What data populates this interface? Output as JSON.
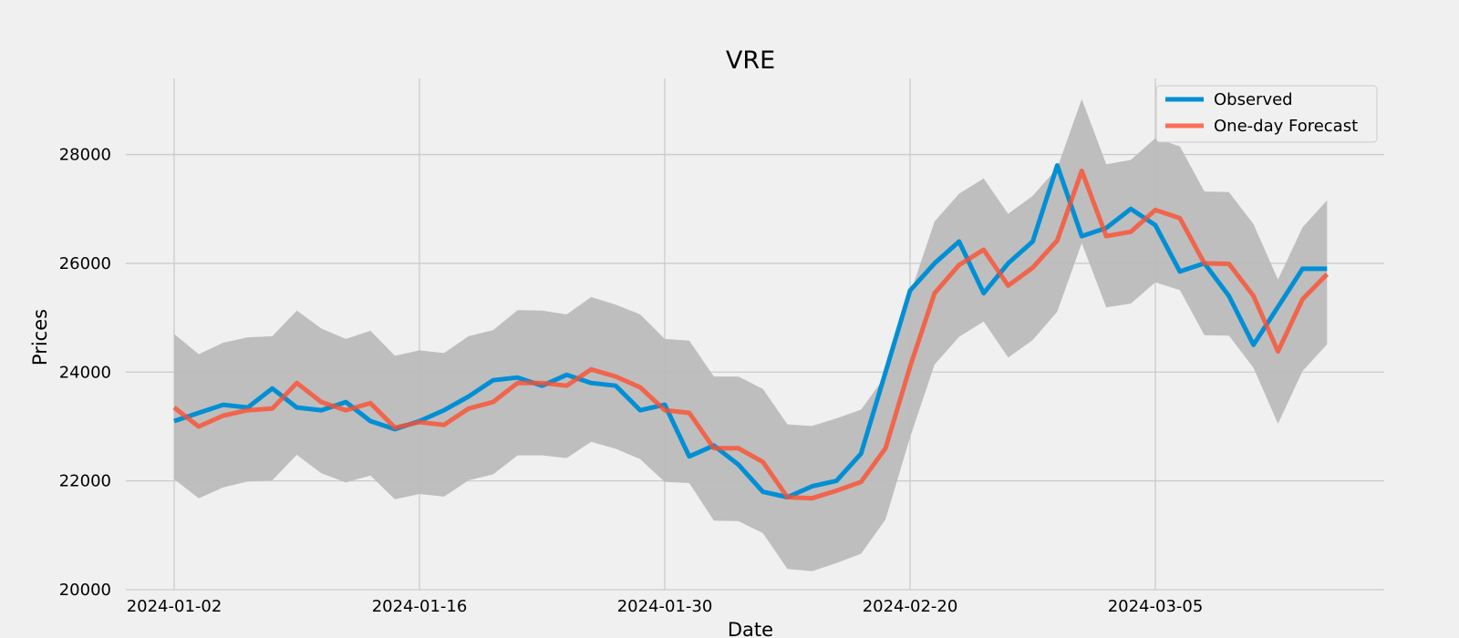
{
  "chart_data": {
    "type": "line",
    "title": "VRE",
    "xlabel": "Date",
    "ylabel": "Prices",
    "x_tick_labels": [
      "2024-01-02",
      "2024-01-16",
      "2024-01-30",
      "2024-02-20",
      "2024-03-05"
    ],
    "y_ticks": [
      20000,
      22000,
      24000,
      26000,
      28000
    ],
    "ylim": [
      20000,
      29400
    ],
    "grid": true,
    "legend_position": "top-right",
    "x": [
      "2024-01-02",
      "2024-01-03",
      "2024-01-04",
      "2024-01-05",
      "2024-01-08",
      "2024-01-09",
      "2024-01-10",
      "2024-01-11",
      "2024-01-12",
      "2024-01-15",
      "2024-01-16",
      "2024-01-17",
      "2024-01-18",
      "2024-01-19",
      "2024-01-22",
      "2024-01-23",
      "2024-01-24",
      "2024-01-25",
      "2024-01-26",
      "2024-01-29",
      "2024-01-30",
      "2024-01-31",
      "2024-02-01",
      "2024-02-02",
      "2024-02-05",
      "2024-02-06",
      "2024-02-07",
      "2024-02-08",
      "2024-02-16",
      "2024-02-19",
      "2024-02-20",
      "2024-02-21",
      "2024-02-22",
      "2024-02-23",
      "2024-02-26",
      "2024-02-27",
      "2024-02-28",
      "2024-02-29",
      "2024-03-01",
      "2024-03-04",
      "2024-03-05",
      "2024-03-06",
      "2024-03-07",
      "2024-03-08",
      "2024-03-11",
      "2024-03-12",
      "2024-03-13",
      "2024-03-14"
    ],
    "series": [
      {
        "name": "Observed",
        "color": "#008fd5",
        "values": [
          23100,
          23250,
          23400,
          23350,
          23700,
          23350,
          23300,
          23450,
          23100,
          22950,
          23100,
          23300,
          23550,
          23850,
          23900,
          23750,
          23950,
          23800,
          23750,
          23300,
          23400,
          22450,
          22650,
          22300,
          21800,
          21700,
          21900,
          22000,
          22500,
          24000,
          25500,
          26000,
          26400,
          25450,
          26000,
          26400,
          27800,
          26500,
          26650,
          27000,
          26700,
          25850,
          26000,
          25400,
          24500,
          25200,
          25900,
          25900
        ]
      },
      {
        "name": "One-day Forecast",
        "color": "#fc4f30",
        "values": [
          23350,
          23000,
          23200,
          23300,
          23330,
          23800,
          23450,
          23300,
          23430,
          22980,
          23080,
          23030,
          23330,
          23450,
          23800,
          23800,
          23750,
          24050,
          23920,
          23720,
          23300,
          23250,
          22600,
          22600,
          22350,
          21700,
          21680,
          21820,
          21980,
          22600,
          24100,
          25450,
          25970,
          26250,
          25590,
          25920,
          26420,
          27700,
          26500,
          26580,
          26980,
          26830,
          26000,
          25990,
          25400,
          24380,
          25340,
          25800
        ]
      }
    ],
    "band": {
      "label": "",
      "color": "#bbbbbb",
      "upper": [
        24700,
        24330,
        24540,
        24640,
        24660,
        25130,
        24800,
        24610,
        24760,
        24300,
        24400,
        24350,
        24660,
        24770,
        25140,
        25130,
        25060,
        25380,
        25240,
        25060,
        24610,
        24580,
        23920,
        23920,
        23690,
        23040,
        23010,
        23150,
        23310,
        23930,
        25430,
        26770,
        27280,
        27560,
        26910,
        27240,
        27750,
        29020,
        27820,
        27900,
        28300,
        28150,
        27320,
        27310,
        26720,
        25700,
        26660,
        27160
      ],
      "lower": [
        22030,
        21680,
        21880,
        21990,
        22010,
        22480,
        22140,
        21970,
        22100,
        21660,
        21760,
        21710,
        22010,
        22120,
        22470,
        22470,
        22420,
        22720,
        22590,
        22400,
        21980,
        21960,
        21270,
        21260,
        21040,
        20380,
        20340,
        20490,
        20660,
        21290,
        22800,
        24140,
        24650,
        24930,
        24270,
        24590,
        25110,
        26370,
        25190,
        25260,
        25650,
        25510,
        24680,
        24670,
        24080,
        23050,
        24020,
        24510
      ]
    }
  }
}
